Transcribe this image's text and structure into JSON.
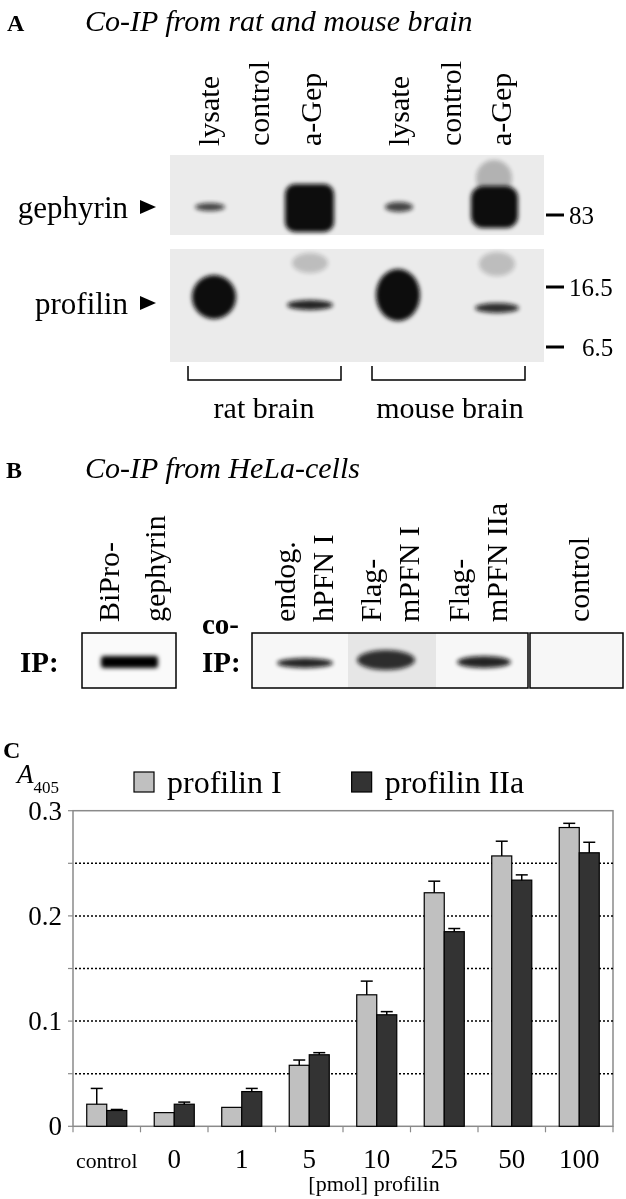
{
  "chart_data": [
    {
      "type": "other",
      "title": "Co-IP from rat and mouse brain",
      "annotations": [
        "A",
        "lysate",
        "control",
        "a-Gep",
        "lysate",
        "control",
        "a-Gep",
        "gephyrin",
        "profilin",
        "83",
        "16.5",
        "6.5",
        "rat brain",
        "mouse brain"
      ]
    },
    {
      "type": "other",
      "title": "Co-IP from HeLa-cells",
      "annotations": [
        "B",
        "BiPro-gephyrin",
        "IP:",
        "endog. hPFN I",
        "Flag-mPFN I",
        "Flag-mPFN IIa",
        "control",
        "co-IP:"
      ]
    },
    {
      "type": "bar",
      "annotations": [
        "C"
      ],
      "ylabel": "A$_{405}$",
      "xlabel": "[pmol] profilin",
      "categories": [
        "control",
        "0",
        "1",
        "5",
        "10",
        "25",
        "50",
        "100"
      ],
      "series": [
        {
          "name": "profilin I",
          "color": "#c0c0c0",
          "values": [
            0.021,
            0.013,
            0.018,
            0.058,
            0.125,
            0.222,
            0.257,
            0.284
          ],
          "errors": [
            0.015,
            null,
            null,
            0.005,
            0.013,
            0.011,
            0.014,
            0.004
          ]
        },
        {
          "name": "profilin IIa",
          "color": "#333333",
          "values": [
            0.015,
            0.021,
            0.033,
            0.068,
            0.106,
            0.185,
            0.234,
            0.26
          ],
          "errors": [
            0.001,
            0.002,
            0.003,
            0.002,
            0.003,
            0.003,
            0.005,
            0.01
          ]
        }
      ],
      "ylim": [
        0,
        0.3
      ],
      "yticks": [
        0,
        {
          "value": 0.05,
          "label": null
        },
        0.1,
        {
          "value": 0.15,
          "label": null
        },
        0.2,
        {
          "value": 0.25,
          "label": null
        },
        0.3
      ],
      "grid": "y",
      "legend": "top"
    }
  ]
}
